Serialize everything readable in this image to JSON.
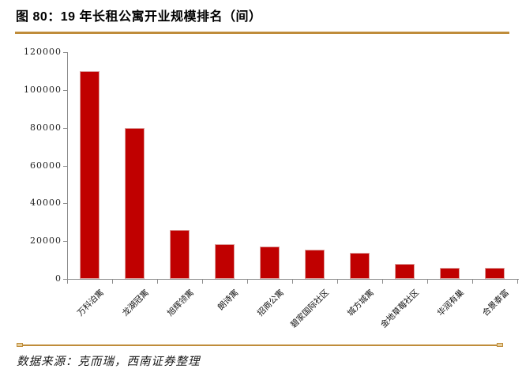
{
  "header": {
    "title": "图 80：19 年长租公寓开业规模排名（间）"
  },
  "footer": {
    "source": "数据来源：克而瑞，西南证券整理"
  },
  "colors": {
    "bar": "#C00000",
    "bar_edge": "#DDA09E",
    "accent_line": "#BF8C3A",
    "axis": "#8C8C8C",
    "text": "#000000"
  },
  "chart_data": {
    "type": "bar",
    "title": "19 年长租公寓开业规模排名（间）",
    "categories": [
      "万科泊寓",
      "龙湖冠寓",
      "旭辉领寓",
      "朗诗寓",
      "招商公寓",
      "碧家国际社区",
      "城方城寓",
      "金地草莓社区",
      "华润有巢",
      "合景泰富"
    ],
    "values": [
      110000,
      80000,
      26000,
      18500,
      17000,
      15500,
      14000,
      8000,
      6000,
      6000
    ],
    "xlabel": "",
    "ylabel": "",
    "ylim": [
      0,
      120000
    ],
    "yticks": [
      0,
      20000,
      40000,
      60000,
      80000,
      100000,
      120000
    ],
    "ytick_labels": [
      "0",
      "20000",
      "40000",
      "60000",
      "80000",
      "100000",
      "120000"
    ],
    "grid": false,
    "legend": null,
    "unit": "间"
  }
}
